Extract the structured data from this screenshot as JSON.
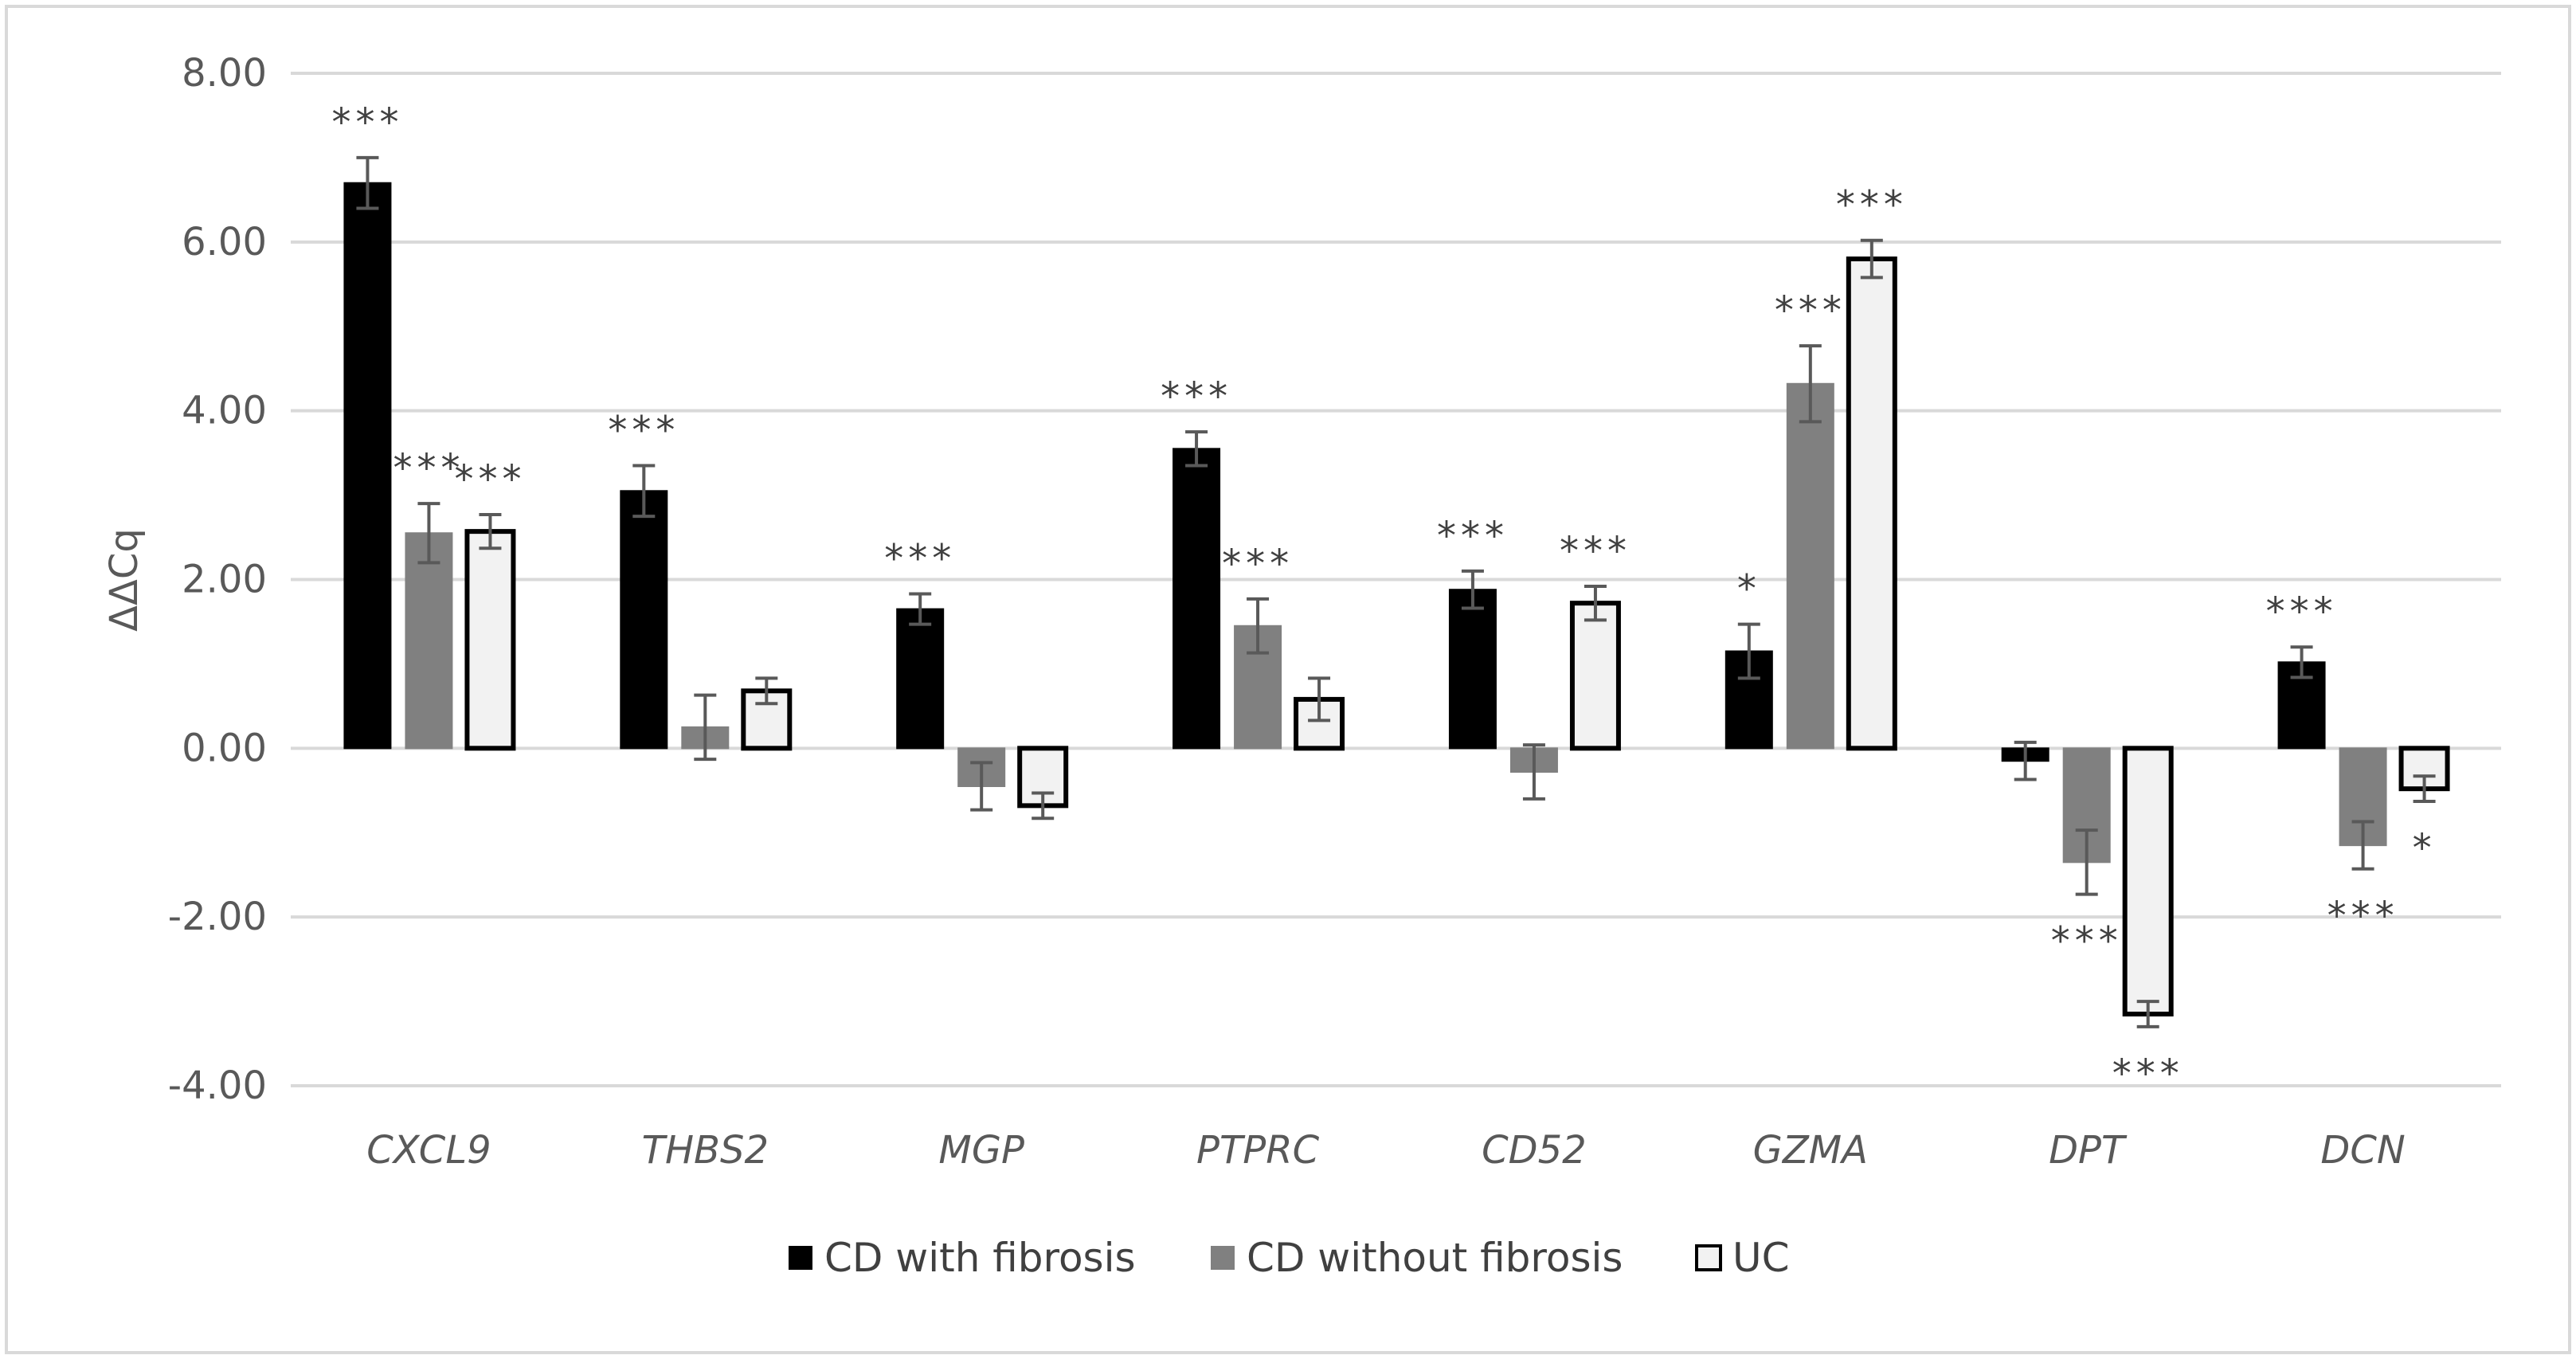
{
  "chart_data": {
    "type": "bar",
    "title": "",
    "xlabel": "",
    "ylabel": "ΔΔCq",
    "ylim": [
      -4,
      8
    ],
    "yticks": [
      8,
      6,
      4,
      2,
      0,
      -2,
      -4
    ],
    "ytick_labels": [
      "8.00",
      "6.00",
      "4.00",
      "2.00",
      "0.00",
      "-2.00",
      "-4.00"
    ],
    "grid": true,
    "legend_position": "bottom",
    "categories": [
      "CXCL9",
      "THBS2",
      "MGP",
      "PTPRC",
      "CD52",
      "GZMA",
      "DPT",
      "DCN"
    ],
    "series": [
      {
        "name": "CD with fibrosis",
        "color": "#000000",
        "values": [
          6.7,
          3.05,
          1.65,
          3.55,
          1.88,
          1.15,
          -0.15,
          1.02
        ],
        "errors": [
          0.3,
          0.3,
          0.18,
          0.2,
          0.22,
          0.32,
          0.22,
          0.18
        ],
        "significance": [
          "***",
          "***",
          "***",
          "***",
          "***",
          "*",
          "",
          "***"
        ]
      },
      {
        "name": "CD without fibrosis",
        "color": "#808080",
        "values": [
          2.55,
          0.25,
          -0.45,
          1.45,
          -0.28,
          4.32,
          -1.35,
          -1.15
        ],
        "errors": [
          0.35,
          0.38,
          0.28,
          0.32,
          0.32,
          0.45,
          0.38,
          0.28
        ],
        "significance": [
          "***",
          "",
          "",
          "***",
          "",
          "***",
          "***",
          "***"
        ]
      },
      {
        "name": "UC",
        "color": "#f2f2f2",
        "values": [
          2.57,
          0.68,
          -0.68,
          0.58,
          1.72,
          5.8,
          -3.15,
          -0.48
        ],
        "errors": [
          0.2,
          0.15,
          0.15,
          0.25,
          0.2,
          0.22,
          0.15,
          0.15
        ],
        "significance": [
          "***",
          "",
          "",
          "",
          "***",
          "***",
          "***",
          "*"
        ]
      }
    ]
  }
}
